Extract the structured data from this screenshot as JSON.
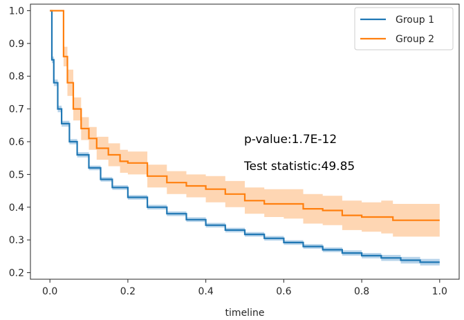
{
  "chart_data": {
    "type": "line",
    "subtype": "kaplan-meier survival curves with confidence bands",
    "title": "",
    "xlabel": "timeline",
    "ylabel": "",
    "xlim": [
      -0.05,
      1.05
    ],
    "ylim": [
      0.18,
      1.02
    ],
    "xticks": [
      0.0,
      0.2,
      0.4,
      0.6,
      0.8,
      1.0
    ],
    "xtick_labels": [
      "0.0",
      "0.2",
      "0.4",
      "0.6",
      "0.8",
      "1.0"
    ],
    "yticks": [
      0.2,
      0.3,
      0.4,
      0.5,
      0.6,
      0.7,
      0.8,
      0.9,
      1.0
    ],
    "ytick_labels": [
      "0.2",
      "0.3",
      "0.4",
      "0.5",
      "0.6",
      "0.7",
      "0.8",
      "0.9",
      "1.0"
    ],
    "legend": {
      "placement": "top-right",
      "entries": [
        "Group 1",
        "Group 2"
      ]
    },
    "annotations": [
      "p-value:1.7E-12",
      "Test statistic:49.85"
    ],
    "series": [
      {
        "name": "Group 1",
        "color": "#1f77b4",
        "band_color": "#9ec4e3",
        "x": [
          0.0,
          0.005,
          0.01,
          0.02,
          0.03,
          0.05,
          0.07,
          0.1,
          0.13,
          0.16,
          0.2,
          0.25,
          0.3,
          0.35,
          0.4,
          0.45,
          0.5,
          0.55,
          0.6,
          0.65,
          0.7,
          0.75,
          0.8,
          0.85,
          0.9,
          0.95,
          1.0
        ],
        "y": [
          1.0,
          0.85,
          0.78,
          0.7,
          0.655,
          0.6,
          0.56,
          0.52,
          0.485,
          0.46,
          0.43,
          0.4,
          0.38,
          0.362,
          0.345,
          0.33,
          0.317,
          0.305,
          0.292,
          0.28,
          0.27,
          0.26,
          0.252,
          0.245,
          0.238,
          0.232,
          0.232
        ],
        "lower": [
          1.0,
          0.84,
          0.77,
          0.69,
          0.646,
          0.592,
          0.552,
          0.513,
          0.478,
          0.453,
          0.423,
          0.393,
          0.373,
          0.355,
          0.338,
          0.323,
          0.31,
          0.298,
          0.285,
          0.273,
          0.263,
          0.252,
          0.244,
          0.236,
          0.228,
          0.222,
          0.222
        ],
        "upper": [
          1.0,
          0.86,
          0.79,
          0.71,
          0.664,
          0.608,
          0.568,
          0.527,
          0.492,
          0.467,
          0.437,
          0.407,
          0.387,
          0.369,
          0.352,
          0.337,
          0.324,
          0.312,
          0.299,
          0.287,
          0.277,
          0.268,
          0.26,
          0.254,
          0.248,
          0.242,
          0.242
        ]
      },
      {
        "name": "Group 2",
        "color": "#ff7f0e",
        "band_color": "#fdc89a",
        "x": [
          0.0,
          0.03,
          0.035,
          0.045,
          0.06,
          0.08,
          0.1,
          0.12,
          0.15,
          0.18,
          0.2,
          0.25,
          0.3,
          0.35,
          0.4,
          0.45,
          0.5,
          0.55,
          0.6,
          0.65,
          0.7,
          0.75,
          0.8,
          0.85,
          0.88,
          0.9,
          0.95,
          1.0
        ],
        "y": [
          1.0,
          1.0,
          0.86,
          0.78,
          0.7,
          0.64,
          0.61,
          0.58,
          0.56,
          0.54,
          0.535,
          0.495,
          0.475,
          0.465,
          0.455,
          0.44,
          0.42,
          0.41,
          0.41,
          0.395,
          0.39,
          0.375,
          0.37,
          0.37,
          0.36,
          0.36,
          0.36,
          0.36
        ],
        "lower": [
          1.0,
          1.0,
          0.83,
          0.74,
          0.665,
          0.605,
          0.575,
          0.545,
          0.525,
          0.505,
          0.5,
          0.46,
          0.44,
          0.43,
          0.415,
          0.4,
          0.38,
          0.37,
          0.365,
          0.35,
          0.345,
          0.33,
          0.325,
          0.32,
          0.31,
          0.31,
          0.31,
          0.31
        ],
        "upper": [
          1.0,
          1.0,
          0.89,
          0.82,
          0.735,
          0.675,
          0.645,
          0.615,
          0.595,
          0.575,
          0.57,
          0.53,
          0.51,
          0.5,
          0.495,
          0.48,
          0.46,
          0.455,
          0.455,
          0.44,
          0.435,
          0.42,
          0.415,
          0.42,
          0.41,
          0.41,
          0.41,
          0.41
        ]
      }
    ]
  }
}
